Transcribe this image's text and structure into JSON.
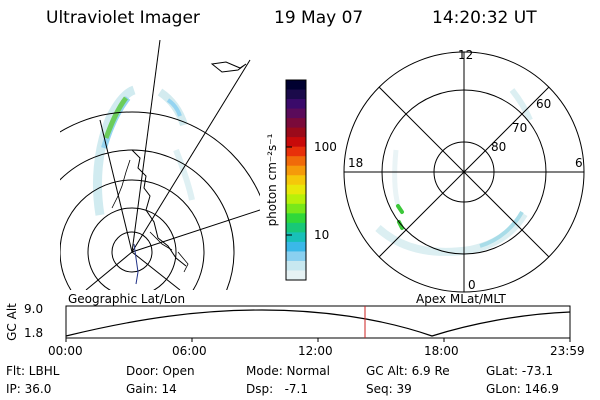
{
  "header": {
    "instrument": "Ultraviolet Imager",
    "date": "19 May 07",
    "time": "14:20:32 UT"
  },
  "colorbar": {
    "unit": "photon cm⁻²s⁻¹",
    "ticks": [
      "100",
      "10"
    ],
    "colors": [
      "#000030",
      "#1a0a4a",
      "#3a0a6a",
      "#5a0b5a",
      "#7a0a3a",
      "#9a0a1a",
      "#c80a0a",
      "#e8300a",
      "#f06a0a",
      "#f59a0a",
      "#f5c80a",
      "#e8e80a",
      "#b8f00a",
      "#78e81a",
      "#30d83a",
      "#18c878",
      "#18c0b8",
      "#3ab8e8",
      "#8ad0f0",
      "#c8e8f0",
      "#e6f2f4"
    ]
  },
  "polar_plot": {
    "mlt_labels": [
      "12",
      "18",
      "6",
      "0"
    ],
    "lat_labels": [
      "60",
      "70",
      "80"
    ]
  },
  "timeline": {
    "left_title": "Geographic Lat/Lon",
    "right_title": "Apex MLat/MLT",
    "y_label": "GC Alt",
    "y_ticks": [
      "9.0",
      "1.8"
    ],
    "x_ticks": [
      "00:00",
      "06:00",
      "12:00",
      "18:00",
      "23:59"
    ],
    "marker_color": "#cc2222"
  },
  "footer": {
    "filter": "Flt: LBHL",
    "door": "Door: Open",
    "mode": "Mode: Normal",
    "gc_alt": "GC Alt: 6.9 Re",
    "glat": "GLat: -73.1",
    "ip": "IP: 36.0",
    "gain": "Gain: 14",
    "dsp": "Dsp:   -7.1",
    "seq": "Seq: 39",
    "glon": "GLon: 146.9"
  }
}
